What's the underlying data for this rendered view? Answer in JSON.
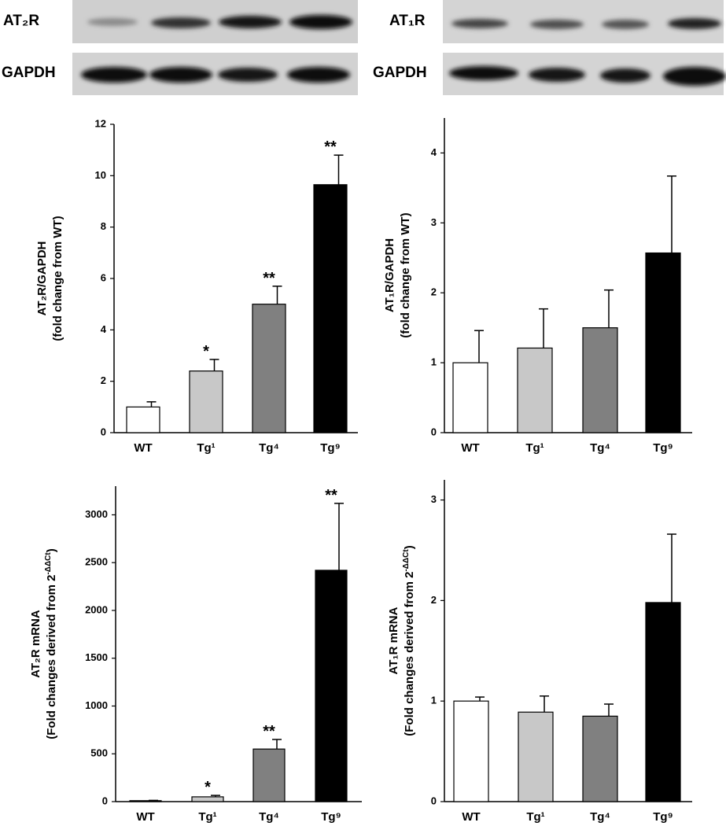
{
  "blots": [
    {
      "label": "AT₂R"
    },
    {
      "label": "GAPDH"
    },
    {
      "label": "AT₁R"
    },
    {
      "label": "GAPDH"
    }
  ],
  "chart_data": [
    {
      "type": "bar",
      "ylabel": "AT₂R/GAPDH",
      "ylabel2": "(fold change from WT)",
      "categories": [
        "WT",
        "Tg¹",
        "Tg⁴",
        "Tg⁹"
      ],
      "values": [
        1.0,
        2.4,
        5.0,
        9.65
      ],
      "errors": [
        0.2,
        0.45,
        0.7,
        1.15
      ],
      "annotations": [
        null,
        "*",
        "**",
        "**"
      ],
      "colors": [
        "#ffffff",
        "#c8c8c8",
        "#808080",
        "#000000"
      ],
      "ylim": [
        0,
        12
      ],
      "yticks": [
        0,
        2,
        4,
        6,
        8,
        10,
        12
      ]
    },
    {
      "type": "bar",
      "ylabel": "AT₁R/GAPDH",
      "ylabel2": "(fold change from WT)",
      "categories": [
        "WT",
        "Tg¹",
        "Tg⁴",
        "Tg⁹"
      ],
      "values": [
        1.0,
        1.21,
        1.5,
        2.57
      ],
      "errors": [
        0.46,
        0.56,
        0.54,
        1.1
      ],
      "colors": [
        "#ffffff",
        "#c8c8c8",
        "#808080",
        "#000000"
      ],
      "ylim": [
        0,
        4.5
      ],
      "yticks": [
        0,
        1,
        2,
        3,
        4
      ]
    },
    {
      "type": "bar",
      "ylabel": "AT₂R mRNA",
      "ylabel2": "(Fold changes derived from 2",
      "ylabel2_sup": "-ΔΔCt",
      "ylabel2_end": ")",
      "categories": [
        "WT",
        "Tg¹",
        "Tg⁴",
        "Tg⁹"
      ],
      "values": [
        10,
        50,
        550,
        2420
      ],
      "errors": [
        3,
        15,
        100,
        700
      ],
      "annotations": [
        null,
        "*",
        "**",
        "**"
      ],
      "colors": [
        "#ffffff",
        "#c8c8c8",
        "#808080",
        "#000000"
      ],
      "ylim": [
        0,
        3300
      ],
      "yticks": [
        0,
        500,
        1000,
        1500,
        2000,
        2500,
        3000
      ]
    },
    {
      "type": "bar",
      "ylabel": "AT₁R mRNA",
      "ylabel2": "(Fold changes derived from 2",
      "ylabel2_sup": "-ΔΔCt",
      "ylabel2_end": ")",
      "categories": [
        "WT",
        "Tg¹",
        "Tg⁴",
        "Tg⁹"
      ],
      "values": [
        1.0,
        0.89,
        0.85,
        1.98
      ],
      "errors": [
        0.04,
        0.16,
        0.12,
        0.68
      ],
      "colors": [
        "#ffffff",
        "#c8c8c8",
        "#808080",
        "#000000"
      ],
      "ylim": [
        0,
        3.2
      ],
      "yticks": [
        0,
        1,
        2,
        3
      ]
    }
  ]
}
